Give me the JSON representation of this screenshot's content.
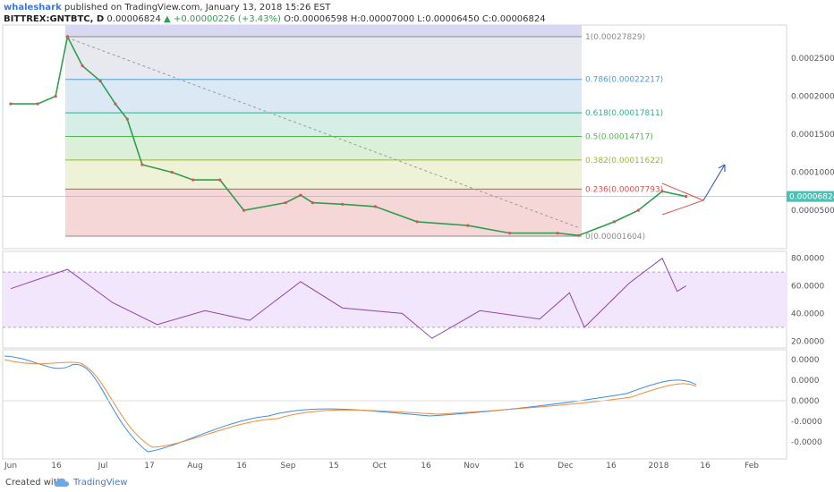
{
  "header": {
    "user": "whaleshark",
    "published": "published on TradingView.com, January 13, 2018 15:26 EST",
    "symbol": "BITTREX:GNTBTC, D",
    "last": "0.00006824",
    "change": "+0.00000226 (+3.43%)",
    "ohlc": "O:0.00006598 H:0.00007000 L:0.00006450 C:0.00006824"
  },
  "footer": {
    "created": "Created with",
    "brand": "TradingView"
  },
  "chart_data": {
    "type": "line",
    "title": "BITTREX:GNTBTC, D",
    "x_ticks": [
      "Jun",
      "16",
      "Jul",
      "17",
      "Aug",
      "16",
      "Sep",
      "15",
      "Oct",
      "16",
      "Nov",
      "16",
      "Dec",
      "16",
      "2018",
      "16",
      "Feb"
    ],
    "price": {
      "y_ticks": [
        "0.00025000",
        "0.00020000",
        "0.00015000",
        "0.00010000",
        "0.00005000"
      ],
      "last_label": "0.00006824",
      "series": [
        {
          "x": "2017-06-01",
          "y": 0.00019
        },
        {
          "x": "2017-06-10",
          "y": 0.00019
        },
        {
          "x": "2017-06-16",
          "y": 0.0002
        },
        {
          "x": "2017-06-20",
          "y": 0.00027829
        },
        {
          "x": "2017-06-25",
          "y": 0.00024
        },
        {
          "x": "2017-07-01",
          "y": 0.00022
        },
        {
          "x": "2017-07-06",
          "y": 0.00019
        },
        {
          "x": "2017-07-10",
          "y": 0.00017
        },
        {
          "x": "2017-07-15",
          "y": 0.00011
        },
        {
          "x": "2017-07-25",
          "y": 0.0001
        },
        {
          "x": "2017-08-01",
          "y": 9e-05
        },
        {
          "x": "2017-08-10",
          "y": 9e-05
        },
        {
          "x": "2017-08-18",
          "y": 5e-05
        },
        {
          "x": "2017-09-01",
          "y": 6e-05
        },
        {
          "x": "2017-09-06",
          "y": 7e-05
        },
        {
          "x": "2017-09-10",
          "y": 6e-05
        },
        {
          "x": "2017-09-20",
          "y": 5.8e-05
        },
        {
          "x": "2017-10-01",
          "y": 5.5e-05
        },
        {
          "x": "2017-10-15",
          "y": 3.5e-05
        },
        {
          "x": "2017-11-01",
          "y": 3e-05
        },
        {
          "x": "2017-11-15",
          "y": 2e-05
        },
        {
          "x": "2017-12-01",
          "y": 2e-05
        },
        {
          "x": "2017-12-08",
          "y": 1.7e-05
        },
        {
          "x": "2017-12-20",
          "y": 3.5e-05
        },
        {
          "x": "2017-12-28",
          "y": 5e-05
        },
        {
          "x": "2018-01-05",
          "y": 7.5e-05
        },
        {
          "x": "2018-01-13",
          "y": 6.824e-05
        }
      ],
      "fib_levels": [
        {
          "ratio": "1",
          "value": "0.00027829",
          "color": "#8a8a8a"
        },
        {
          "ratio": "0.786",
          "value": "0.00022217",
          "color": "#4a9fd8"
        },
        {
          "ratio": "0.618",
          "value": "0.00017811",
          "color": "#2fae8a"
        },
        {
          "ratio": "0.5",
          "value": "0.00014717",
          "color": "#4fb84f"
        },
        {
          "ratio": "0.382",
          "value": "0.00011622",
          "color": "#9fb43a"
        },
        {
          "ratio": "0.236",
          "value": "0.00007793",
          "color": "#d9534f"
        },
        {
          "ratio": "0",
          "value": "0.00001604",
          "color": "#8a8a8a"
        }
      ]
    },
    "rsi": {
      "y_ticks": [
        "80.0000",
        "60.0000",
        "40.0000",
        "20.0000"
      ],
      "band": [
        30,
        70
      ],
      "series": [
        {
          "x": "2017-06-01",
          "y": 58
        },
        {
          "x": "2017-06-20",
          "y": 72
        },
        {
          "x": "2017-07-05",
          "y": 48
        },
        {
          "x": "2017-07-20",
          "y": 32
        },
        {
          "x": "2017-08-05",
          "y": 42
        },
        {
          "x": "2017-08-20",
          "y": 35
        },
        {
          "x": "2017-09-06",
          "y": 63
        },
        {
          "x": "2017-09-20",
          "y": 44
        },
        {
          "x": "2017-10-10",
          "y": 40
        },
        {
          "x": "2017-10-20",
          "y": 22
        },
        {
          "x": "2017-11-05",
          "y": 42
        },
        {
          "x": "2017-11-25",
          "y": 36
        },
        {
          "x": "2017-12-05",
          "y": 55
        },
        {
          "x": "2017-12-10",
          "y": 30
        },
        {
          "x": "2017-12-25",
          "y": 62
        },
        {
          "x": "2018-01-05",
          "y": 80
        },
        {
          "x": "2018-01-10",
          "y": 56
        },
        {
          "x": "2018-01-13",
          "y": 60
        }
      ]
    },
    "macd": {
      "y_ticks": [
        "0.0000",
        "0.0000",
        "0.0000",
        "-0.0000",
        "-0.0000"
      ]
    }
  }
}
